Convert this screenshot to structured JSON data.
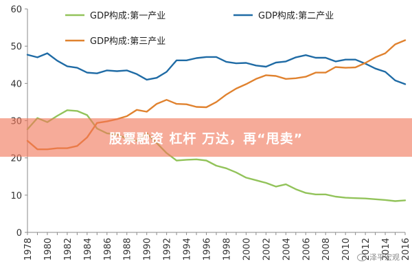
{
  "banner": {
    "text": "股票融资 杠杆 万达，再“甩卖”"
  },
  "watermark": {
    "text": "泽平宏观",
    "icon": "wechat-icon"
  },
  "chart_data": {
    "type": "line",
    "xlim": [
      1978,
      2016
    ],
    "ylim": [
      0,
      60
    ],
    "yticks": [
      0,
      10,
      20,
      30,
      40,
      50,
      60
    ],
    "xticks": [
      1978,
      1980,
      1982,
      1984,
      1986,
      1988,
      1990,
      1992,
      1994,
      1996,
      1998,
      2000,
      2002,
      2004,
      2006,
      2008,
      2010,
      2012,
      2014,
      2016
    ],
    "grid": false,
    "legend_position": "top",
    "x": [
      1978,
      1979,
      1980,
      1981,
      1982,
      1983,
      1984,
      1985,
      1986,
      1987,
      1988,
      1989,
      1990,
      1991,
      1992,
      1993,
      1994,
      1995,
      1996,
      1997,
      1998,
      1999,
      2000,
      2001,
      2002,
      2003,
      2004,
      2005,
      2006,
      2007,
      2008,
      2009,
      2010,
      2011,
      2012,
      2013,
      2014,
      2015,
      2016
    ],
    "series": [
      {
        "name": "GDP构成:第一产业",
        "color": "#92c35a",
        "values": [
          27.7,
          30.7,
          29.6,
          31.3,
          32.8,
          32.6,
          31.5,
          27.9,
          26.6,
          26.3,
          25.2,
          24.6,
          26.6,
          24.0,
          21.3,
          19.3,
          19.5,
          19.6,
          19.3,
          17.9,
          17.2,
          16.1,
          14.7,
          14.0,
          13.3,
          12.3,
          12.9,
          11.6,
          10.6,
          10.2,
          10.2,
          9.6,
          9.3,
          9.2,
          9.1,
          8.9,
          8.7,
          8.4,
          8.6
        ]
      },
      {
        "name": "GDP构成:第二产业",
        "color": "#1f6ba5",
        "values": [
          47.7,
          47.0,
          48.1,
          46.1,
          44.6,
          44.2,
          42.9,
          42.7,
          43.5,
          43.3,
          43.5,
          42.5,
          41.0,
          41.5,
          43.1,
          46.2,
          46.2,
          46.8,
          47.1,
          47.1,
          45.8,
          45.4,
          45.5,
          44.8,
          44.5,
          45.6,
          45.9,
          47.0,
          47.6,
          46.9,
          46.9,
          45.9,
          46.4,
          46.4,
          45.3,
          44.0,
          43.1,
          40.8,
          39.8
        ]
      },
      {
        "name": "GDP构成:第三产业",
        "color": "#e0822f",
        "values": [
          24.6,
          22.3,
          22.3,
          22.6,
          22.6,
          23.2,
          25.5,
          29.4,
          29.8,
          30.4,
          31.2,
          32.9,
          32.4,
          34.5,
          35.6,
          34.5,
          34.4,
          33.7,
          33.6,
          35.0,
          37.0,
          38.6,
          39.8,
          41.2,
          42.2,
          42.0,
          41.2,
          41.4,
          41.8,
          42.9,
          42.9,
          44.4,
          44.2,
          44.3,
          45.5,
          47.0,
          48.1,
          50.5,
          51.6
        ]
      }
    ]
  }
}
